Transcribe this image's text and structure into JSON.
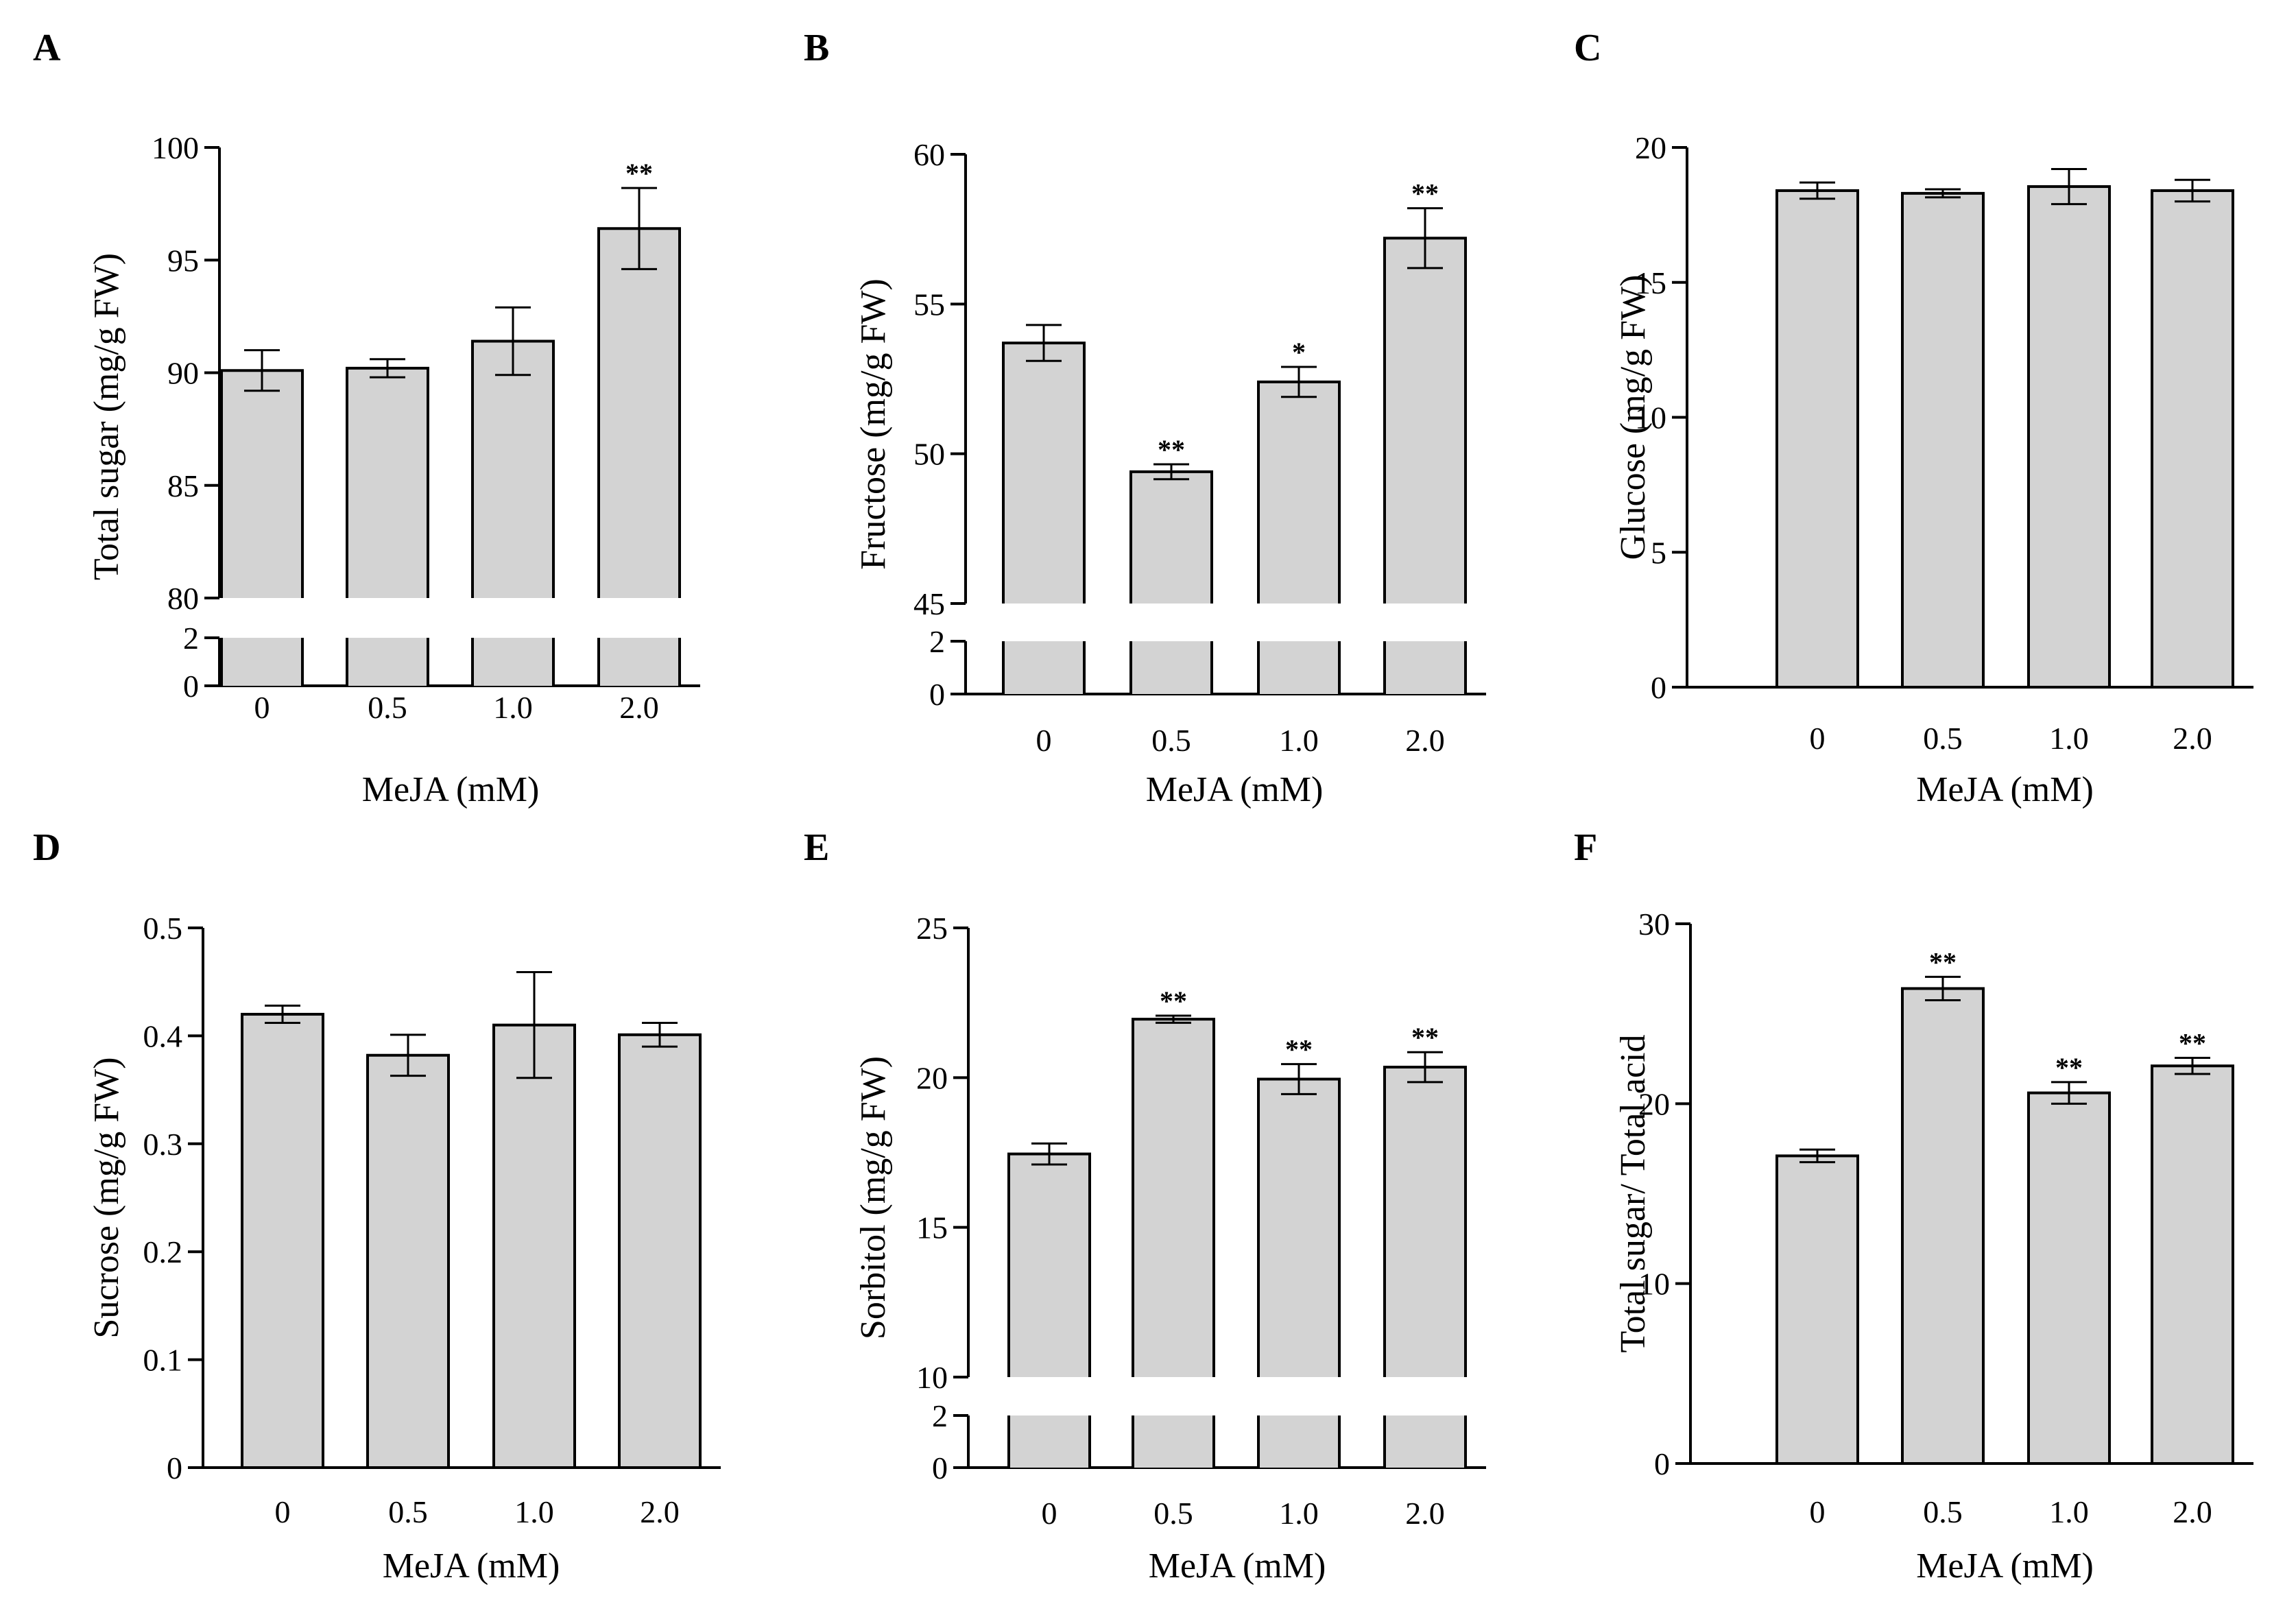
{
  "chart_data": [
    {
      "panel": "A",
      "type": "bar",
      "xlabel": "MeJA (mM)",
      "ylabel": "Total sugar (mg/g FW)",
      "categories": [
        "0",
        "0.5",
        "1.0",
        "2.0"
      ],
      "values": [
        90.1,
        90.2,
        91.4,
        96.4
      ],
      "errors": [
        0.9,
        0.4,
        1.5,
        1.8
      ],
      "significance": [
        "",
        "",
        "",
        "**"
      ],
      "ylim_upper": [
        80,
        100
      ],
      "ylim_lower": [
        0,
        2
      ],
      "yticks_upper": [
        "80",
        "85",
        "90",
        "95",
        "100"
      ],
      "yticks_lower": [
        "0",
        "2"
      ],
      "axis_break": true
    },
    {
      "panel": "B",
      "type": "bar",
      "xlabel": "MeJA (mM)",
      "ylabel": "Fructose (mg/g FW)",
      "categories": [
        "0",
        "0.5",
        "1.0",
        "2.0"
      ],
      "values": [
        53.7,
        49.4,
        52.4,
        57.2
      ],
      "errors": [
        0.6,
        0.25,
        0.5,
        1.0
      ],
      "significance": [
        "",
        "**",
        "*",
        "**"
      ],
      "ylim_upper": [
        45,
        60
      ],
      "ylim_lower": [
        0,
        2
      ],
      "yticks_upper": [
        "45",
        "50",
        "55",
        "60"
      ],
      "yticks_lower": [
        "0",
        "2"
      ],
      "axis_break": true
    },
    {
      "panel": "C",
      "type": "bar",
      "xlabel": "MeJA (mM)",
      "ylabel": "Glucose (mg/g FW)",
      "categories": [
        "0",
        "0.5",
        "1.0",
        "2.0"
      ],
      "values": [
        18.4,
        18.3,
        18.55,
        18.4
      ],
      "errors": [
        0.3,
        0.15,
        0.65,
        0.4
      ],
      "significance": [
        "",
        "",
        "",
        ""
      ],
      "ylim": [
        0,
        20
      ],
      "yticks": [
        "0",
        "5",
        "10",
        "15",
        "20"
      ],
      "axis_break": false
    },
    {
      "panel": "D",
      "type": "bar",
      "xlabel": "MeJA (mM)",
      "ylabel": "Sucrose (mg/g FW)",
      "categories": [
        "0",
        "0.5",
        "1.0",
        "2.0"
      ],
      "values": [
        0.42,
        0.382,
        0.41,
        0.401
      ],
      "errors": [
        0.008,
        0.019,
        0.049,
        0.011
      ],
      "significance": [
        "",
        "",
        "",
        ""
      ],
      "ylim": [
        0,
        0.5
      ],
      "yticks": [
        "0",
        "0.1",
        "0.2",
        "0.3",
        "0.4",
        "0.5"
      ],
      "axis_break": false
    },
    {
      "panel": "E",
      "type": "bar",
      "xlabel": "MeJA (mM)",
      "ylabel": "Sorbitol (mg/g FW)",
      "categories": [
        "0",
        "0.5",
        "1.0",
        "2.0"
      ],
      "values": [
        17.45,
        21.95,
        19.95,
        20.35
      ],
      "errors": [
        0.35,
        0.12,
        0.5,
        0.5
      ],
      "significance": [
        "",
        "**",
        "**",
        "**"
      ],
      "ylim_upper": [
        10,
        25
      ],
      "ylim_lower": [
        0,
        2
      ],
      "yticks_upper": [
        "10",
        "15",
        "20",
        "25"
      ],
      "yticks_lower": [
        "0",
        "2"
      ],
      "axis_break": true
    },
    {
      "panel": "F",
      "type": "bar",
      "xlabel": "MeJA (mM)",
      "ylabel": "Total sugar/ Total acid",
      "categories": [
        "0",
        "0.5",
        "1.0",
        "2.0"
      ],
      "values": [
        17.1,
        26.4,
        20.6,
        22.1
      ],
      "errors": [
        0.35,
        0.65,
        0.6,
        0.45
      ],
      "significance": [
        "",
        "**",
        "**",
        "**"
      ],
      "ylim": [
        0,
        30
      ],
      "yticks": [
        "0",
        "10",
        "20",
        "30"
      ],
      "axis_break": false
    }
  ]
}
